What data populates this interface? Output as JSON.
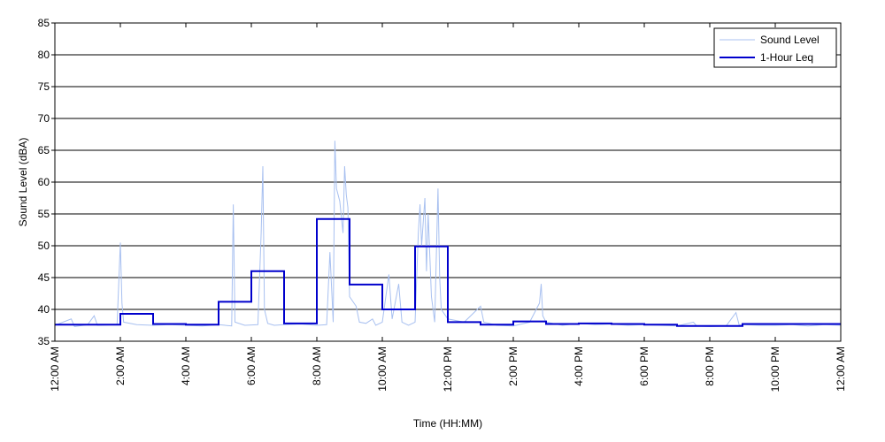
{
  "chart_data": {
    "type": "line",
    "xlabel": "Time (HH:MM)",
    "ylabel": "Sound Level (dBA)",
    "xlim": [
      0,
      24
    ],
    "ylim": [
      35,
      85
    ],
    "y_ticks": [
      35,
      40,
      45,
      50,
      55,
      60,
      65,
      70,
      75,
      80,
      85
    ],
    "x_ticks": [
      0,
      2,
      4,
      6,
      8,
      10,
      12,
      14,
      16,
      18,
      20,
      22,
      24
    ],
    "x_tick_labels": [
      "12:00 AM",
      "2:00 AM",
      "4:00 AM",
      "6:00 AM",
      "8:00 AM",
      "10:00 AM",
      "12:00 PM",
      "2:00 PM",
      "4:00 PM",
      "6:00 PM",
      "8:00 PM",
      "10:00 PM",
      "12:00 AM"
    ],
    "grid": "horizontal",
    "legend_position": "top-right",
    "series": [
      {
        "name": "Sound Level",
        "color": "#a8c0f0",
        "style": "thin-line",
        "points": [
          [
            0.0,
            37.5
          ],
          [
            0.5,
            38.5
          ],
          [
            0.6,
            37.3
          ],
          [
            1.0,
            37.6
          ],
          [
            1.2,
            39.0
          ],
          [
            1.3,
            37.5
          ],
          [
            1.9,
            37.6
          ],
          [
            2.0,
            50.5
          ],
          [
            2.05,
            41.0
          ],
          [
            2.1,
            38.0
          ],
          [
            2.5,
            37.6
          ],
          [
            3.0,
            37.5
          ],
          [
            3.5,
            37.6
          ],
          [
            4.0,
            37.5
          ],
          [
            4.5,
            37.4
          ],
          [
            5.0,
            37.6
          ],
          [
            5.4,
            37.4
          ],
          [
            5.45,
            56.5
          ],
          [
            5.5,
            38.0
          ],
          [
            5.8,
            37.5
          ],
          [
            6.2,
            37.6
          ],
          [
            6.3,
            52.0
          ],
          [
            6.35,
            62.5
          ],
          [
            6.4,
            40.0
          ],
          [
            6.5,
            37.8
          ],
          [
            6.7,
            37.5
          ],
          [
            7.0,
            37.6
          ],
          [
            7.5,
            37.7
          ],
          [
            8.0,
            37.5
          ],
          [
            8.3,
            37.6
          ],
          [
            8.4,
            49.0
          ],
          [
            8.5,
            38.0
          ],
          [
            8.55,
            66.5
          ],
          [
            8.6,
            59.0
          ],
          [
            8.7,
            57.0
          ],
          [
            8.8,
            52.0
          ],
          [
            8.85,
            62.5
          ],
          [
            8.9,
            58.0
          ],
          [
            8.95,
            56.0
          ],
          [
            9.0,
            42.0
          ],
          [
            9.2,
            40.5
          ],
          [
            9.3,
            38.0
          ],
          [
            9.5,
            37.8
          ],
          [
            9.7,
            38.5
          ],
          [
            9.8,
            37.5
          ],
          [
            10.0,
            38.0
          ],
          [
            10.2,
            45.5
          ],
          [
            10.3,
            38.5
          ],
          [
            10.5,
            44.0
          ],
          [
            10.6,
            38.0
          ],
          [
            10.8,
            37.5
          ],
          [
            11.0,
            38.0
          ],
          [
            11.1,
            52.0
          ],
          [
            11.15,
            56.5
          ],
          [
            11.2,
            50.0
          ],
          [
            11.3,
            57.5
          ],
          [
            11.35,
            46.0
          ],
          [
            11.4,
            55.0
          ],
          [
            11.5,
            42.0
          ],
          [
            11.6,
            38.0
          ],
          [
            11.7,
            59.0
          ],
          [
            11.75,
            45.0
          ],
          [
            11.8,
            40.0
          ],
          [
            12.0,
            38.5
          ],
          [
            12.5,
            38.0
          ],
          [
            13.0,
            40.5
          ],
          [
            13.1,
            38.0
          ],
          [
            13.5,
            37.5
          ],
          [
            14.0,
            37.4
          ],
          [
            14.5,
            38.0
          ],
          [
            14.8,
            41.0
          ],
          [
            14.85,
            44.0
          ],
          [
            14.9,
            39.0
          ],
          [
            15.0,
            38.0
          ],
          [
            15.5,
            37.5
          ],
          [
            16.0,
            37.8
          ],
          [
            16.5,
            37.6
          ],
          [
            17.0,
            37.7
          ],
          [
            17.5,
            37.5
          ],
          [
            18.0,
            37.6
          ],
          [
            18.5,
            37.5
          ],
          [
            19.0,
            37.4
          ],
          [
            19.5,
            38.0
          ],
          [
            19.6,
            37.4
          ],
          [
            20.0,
            37.3
          ],
          [
            20.5,
            37.4
          ],
          [
            20.8,
            39.5
          ],
          [
            20.9,
            37.5
          ],
          [
            21.0,
            37.6
          ],
          [
            21.5,
            37.5
          ],
          [
            22.0,
            37.5
          ],
          [
            22.5,
            37.6
          ],
          [
            23.0,
            37.4
          ],
          [
            23.5,
            37.6
          ],
          [
            24.0,
            37.5
          ]
        ]
      },
      {
        "name": "1-Hour Leq",
        "color": "#0000cc",
        "style": "step",
        "hourly": [
          37.6,
          37.6,
          39.3,
          37.7,
          37.6,
          41.2,
          46.0,
          37.8,
          54.2,
          43.9,
          40.0,
          49.9,
          38.0,
          37.6,
          38.1,
          37.7,
          37.8,
          37.7,
          37.6,
          37.4,
          37.4,
          37.7,
          37.7,
          37.7
        ]
      }
    ]
  }
}
